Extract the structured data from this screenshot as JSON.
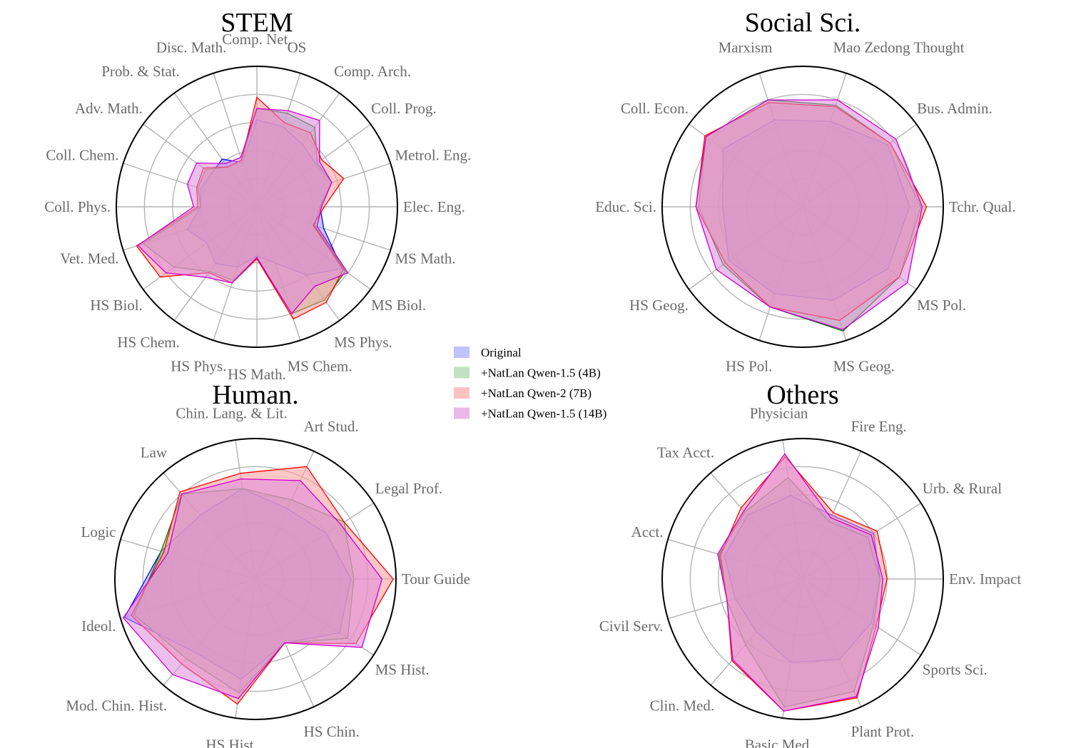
{
  "legend": [
    {
      "label": "Original",
      "fill": "#9999ff",
      "stroke": "#0000ff"
    },
    {
      "label": "+NatLan Qwen-1.5 (4B)",
      "fill": "#99cc99",
      "stroke": "#008000"
    },
    {
      "label": "+NatLan Qwen-2 (7B)",
      "fill": "#ff9999",
      "stroke": "#ff0000"
    },
    {
      "label": "+NatLan Qwen-1.5 (14B)",
      "fill": "#dd88dd",
      "stroke": "#cc00cc"
    }
  ],
  "chart_data": [
    {
      "type": "radar",
      "title": "STEM",
      "rlim": [
        0,
        1
      ],
      "grid_rings": 5,
      "categories": [
        "Elec. Eng.",
        "Metrol. Eng.",
        "Coll. Prog.",
        "Comp. Arch.",
        "OS",
        "Comp. Net.",
        "Disc. Math.",
        "Prob. & Stat.",
        "Adv. Math.",
        "Coll. Chem.",
        "Coll. Phys.",
        "Vet. Med.",
        "HS Biol.",
        "HS Chem.",
        "HS Phys.",
        "HS Math.",
        "MS Chem.",
        "MS Phys.",
        "MS Biol.",
        "MS Math."
      ],
      "series": [
        {
          "name": "Original",
          "values": [
            0.45,
            0.56,
            0.52,
            0.55,
            0.6,
            0.62,
            0.33,
            0.42,
            0.4,
            0.42,
            0.4,
            0.52,
            0.44,
            0.5,
            0.45,
            0.35,
            0.42,
            0.6,
            0.75,
            0.5
          ]
        },
        {
          "name": "+NatLan Qwen-1.5 (4B)",
          "values": [
            0.45,
            0.56,
            0.53,
            0.7,
            0.7,
            0.7,
            0.35,
            0.35,
            0.45,
            0.44,
            0.4,
            0.85,
            0.73,
            0.57,
            0.55,
            0.37,
            0.8,
            0.82,
            0.78,
            0.43
          ]
        },
        {
          "name": "+NatLan Qwen-2 (7B)",
          "values": [
            0.48,
            0.65,
            0.57,
            0.65,
            0.63,
            0.78,
            0.35,
            0.35,
            0.47,
            0.45,
            0.42,
            0.9,
            0.85,
            0.58,
            0.57,
            0.37,
            0.84,
            0.84,
            0.76,
            0.42
          ]
        },
        {
          "name": "+NatLan Qwen-1.5 (14B)",
          "values": [
            0.46,
            0.56,
            0.55,
            0.76,
            0.72,
            0.7,
            0.37,
            0.38,
            0.53,
            0.52,
            0.45,
            0.89,
            0.8,
            0.62,
            0.57,
            0.36,
            0.8,
            0.7,
            0.8,
            0.45
          ]
        }
      ]
    },
    {
      "type": "radar",
      "title": "Social Sci.",
      "rlim": [
        0,
        1
      ],
      "grid_rings": 5,
      "categories": [
        "Tchr. Qual.",
        "Bus. Admin.",
        "Mao Zedong Thought",
        "Marxism",
        "Coll. Econ.",
        "Educ. Sci.",
        "HS Geog.",
        "HS Pol.",
        "MS Geog.",
        "MS Pol."
      ],
      "series": [
        {
          "name": "Original",
          "values": [
            0.76,
            0.75,
            0.64,
            0.65,
            0.7,
            0.57,
            0.65,
            0.65,
            0.7,
            0.75
          ]
        },
        {
          "name": "+NatLan Qwen-1.5 (4B)",
          "values": [
            0.84,
            0.77,
            0.76,
            0.8,
            0.85,
            0.74,
            0.7,
            0.75,
            0.93,
            0.85
          ]
        },
        {
          "name": "+NatLan Qwen-2 (7B)",
          "values": [
            0.88,
            0.77,
            0.75,
            0.78,
            0.86,
            0.76,
            0.68,
            0.75,
            0.85,
            0.85
          ]
        },
        {
          "name": "+NatLan Qwen-1.5 (14B)",
          "values": [
            0.85,
            0.82,
            0.8,
            0.8,
            0.85,
            0.76,
            0.76,
            0.75,
            0.92,
            0.92
          ]
        }
      ]
    },
    {
      "type": "radar",
      "title": "Human.",
      "rlim": [
        0,
        1
      ],
      "grid_rings": 5,
      "categories": [
        "Tour Guide",
        "Legal Prof.",
        "Art Stud.",
        "Chin. Lang. & Lit.",
        "Law",
        "Logic",
        "Ideol.",
        "Mod. Chin. Hist.",
        "HS Hist.",
        "HS Chin.",
        "MS Hist."
      ],
      "series": [
        {
          "name": "Original",
          "values": [
            0.68,
            0.6,
            0.55,
            0.65,
            0.6,
            0.7,
            0.97,
            0.68,
            0.72,
            0.5,
            0.71
          ]
        },
        {
          "name": "+NatLan Qwen-1.5 (4B)",
          "values": [
            0.7,
            0.75,
            0.62,
            0.65,
            0.8,
            0.7,
            0.9,
            0.75,
            0.82,
            0.5,
            0.78
          ]
        },
        {
          "name": "+NatLan Qwen-2 (7B)",
          "values": [
            0.98,
            0.75,
            0.88,
            0.76,
            0.82,
            0.68,
            0.92,
            0.8,
            0.9,
            0.5,
            0.85
          ]
        },
        {
          "name": "+NatLan Qwen-1.5 (14B)",
          "values": [
            0.9,
            0.72,
            0.77,
            0.72,
            0.8,
            0.65,
            0.98,
            0.9,
            0.86,
            0.5,
            0.9
          ]
        }
      ]
    },
    {
      "type": "radar",
      "title": "Others",
      "rlim": [
        0,
        1
      ],
      "grid_rings": 5,
      "categories": [
        "Env. Impact",
        "Urb. & Rural",
        "Fire Eng.",
        "Physician",
        "Tax Acct.",
        "Acct.",
        "Civil Serv.",
        "Clin. Med.",
        "Basic Med.",
        "Plant Prot.",
        "Sports Sci."
      ],
      "series": [
        {
          "name": "Original",
          "values": [
            0.55,
            0.6,
            0.5,
            0.6,
            0.6,
            0.58,
            0.5,
            0.5,
            0.6,
            0.63,
            0.58
          ]
        },
        {
          "name": "+NatLan Qwen-1.5 (4B)",
          "values": [
            0.55,
            0.55,
            0.45,
            0.73,
            0.63,
            0.62,
            0.56,
            0.62,
            0.92,
            0.88,
            0.6
          ]
        },
        {
          "name": "+NatLan Qwen-2 (7B)",
          "values": [
            0.6,
            0.63,
            0.52,
            0.88,
            0.67,
            0.61,
            0.56,
            0.77,
            0.95,
            0.93,
            0.62
          ]
        },
        {
          "name": "+NatLan Qwen-1.5 (14B)",
          "values": [
            0.57,
            0.58,
            0.48,
            0.9,
            0.64,
            0.63,
            0.56,
            0.76,
            0.95,
            0.92,
            0.64
          ]
        }
      ]
    }
  ]
}
